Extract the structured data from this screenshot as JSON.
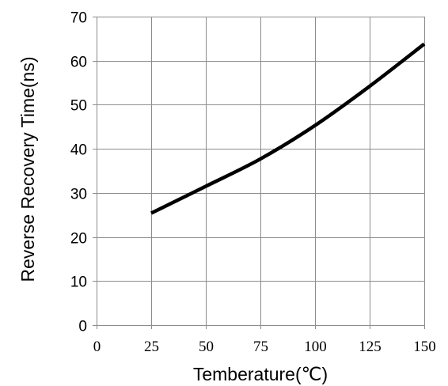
{
  "chart_data": {
    "type": "line",
    "title": "",
    "xlabel": "Temberature(℃)",
    "ylabel": "Reverse Recovery Time(ns)",
    "xlim": [
      0,
      150
    ],
    "ylim": [
      0,
      70
    ],
    "x_ticks": [
      0,
      25,
      50,
      75,
      100,
      125,
      150
    ],
    "y_ticks": [
      0,
      10,
      20,
      30,
      40,
      50,
      60,
      70
    ],
    "grid": true,
    "legend": "none",
    "series": [
      {
        "color": "#000000",
        "x": [
          25,
          50,
          75,
          100,
          125,
          150
        ],
        "y": [
          25.4,
          31.5,
          37.7,
          45.3,
          54.2,
          63.8
        ]
      }
    ]
  }
}
